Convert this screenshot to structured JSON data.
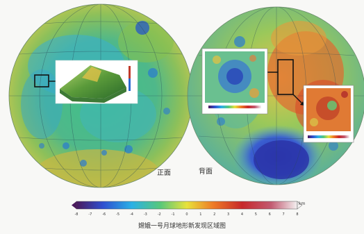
{
  "hemispheres": {
    "near_side_label": "正面",
    "far_side_label": "背面"
  },
  "colorbar": {
    "unit": "km",
    "tick_labels": [
      "-8",
      "-7",
      "-6",
      "-5",
      "-4",
      "-3",
      "-2",
      "-1",
      "0",
      "1",
      "2",
      "3",
      "4",
      "5",
      "6",
      "7",
      "8"
    ],
    "colors": [
      "#4a1a5c",
      "#3a2a8c",
      "#2f4fd0",
      "#2a7fe6",
      "#2bb0e6",
      "#34c8c0",
      "#58c87a",
      "#a6d84a",
      "#e8e23c",
      "#f3b22e",
      "#ee7a26",
      "#e0482a",
      "#c7282a",
      "#b41e3a",
      "#c25a70",
      "#d8a0b0",
      "#f4f2f2"
    ]
  },
  "caption": "嫦娥一号月球地形新发现区域图"
}
